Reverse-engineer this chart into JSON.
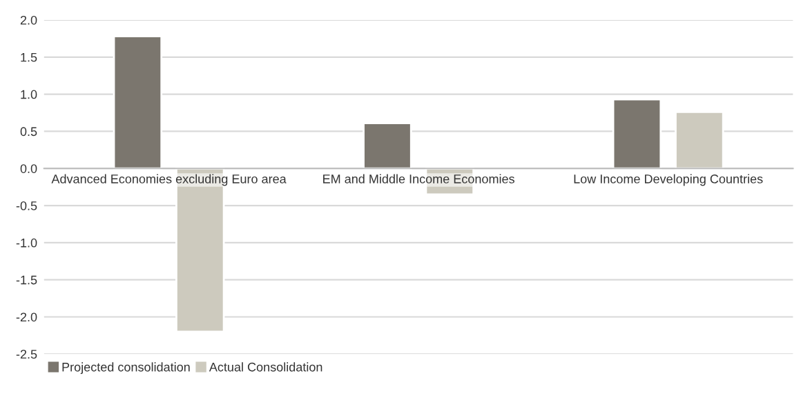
{
  "chart_data": {
    "type": "bar",
    "categories": [
      "Advanced Economies excluding Euro area",
      "EM and Middle Income Economies",
      "Low Income Developing Countries"
    ],
    "series": [
      {
        "name": "Projected consolidation",
        "color": "#7b766e",
        "values": [
          1.78,
          0.61,
          0.93
        ]
      },
      {
        "name": "Actual Consolidation",
        "color": "#cdcabe",
        "values": [
          -2.2,
          -0.35,
          0.76
        ]
      }
    ],
    "ylim": [
      -2.5,
      2.0
    ],
    "yticks": [
      {
        "value": -2.5,
        "label": "-2.5"
      },
      {
        "value": -2.0,
        "label": "-2.0"
      },
      {
        "value": -1.5,
        "label": "-1.5"
      },
      {
        "value": -1.0,
        "label": "-1.0"
      },
      {
        "value": -0.5,
        "label": "-0.5"
      },
      {
        "value": 0.0,
        "label": "0.0"
      },
      {
        "value": 0.5,
        "label": "0.5"
      },
      {
        "value": 1.0,
        "label": "1.0"
      },
      {
        "value": 1.5,
        "label": "1.5"
      },
      {
        "value": 2.0,
        "label": "2.0"
      }
    ],
    "grid": "y",
    "legend": "bottom left"
  }
}
